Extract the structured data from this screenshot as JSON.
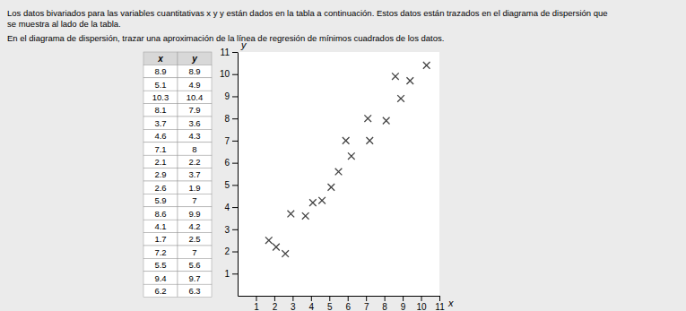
{
  "chart_data": {
    "type": "scatter",
    "title": "Los datos bivariados para las variables cuantitativas x y y están dados en la tabla a continuación. Estos datos están trazados en el diagrama de dispersión que\nse muestra al lado de la tabla.",
    "subtitle": "En el diagrama de dispersión, trazar una aproximación de la línea de regresión de mínimos cuadrados de los datos.",
    "x_label": "x",
    "y_label": "y",
    "x": [
      8.9,
      5.1,
      10.3,
      8.1,
      3.7,
      4.6,
      7.1,
      2.1,
      2.9,
      2.6,
      5.9,
      8.6,
      4.1,
      1.7,
      7.2,
      5.5,
      9.4,
      6.2
    ],
    "values": [
      8.9,
      4.9,
      10.4,
      7.9,
      3.6,
      4.3,
      8.0,
      2.2,
      3.7,
      1.9,
      7.0,
      9.9,
      4.2,
      2.5,
      7.0,
      5.6,
      9.7,
      6.3
    ],
    "color": "#444444",
    "marker": "x",
    "xlim": [
      0,
      11
    ],
    "ylim": [
      0,
      11
    ],
    "xticks": [
      1,
      2,
      3,
      4,
      5,
      6,
      7,
      8,
      9,
      10,
      11
    ],
    "yticks": [
      1,
      2,
      3,
      4,
      5,
      6,
      7,
      8,
      9,
      10,
      11
    ],
    "grid": false
  }
}
